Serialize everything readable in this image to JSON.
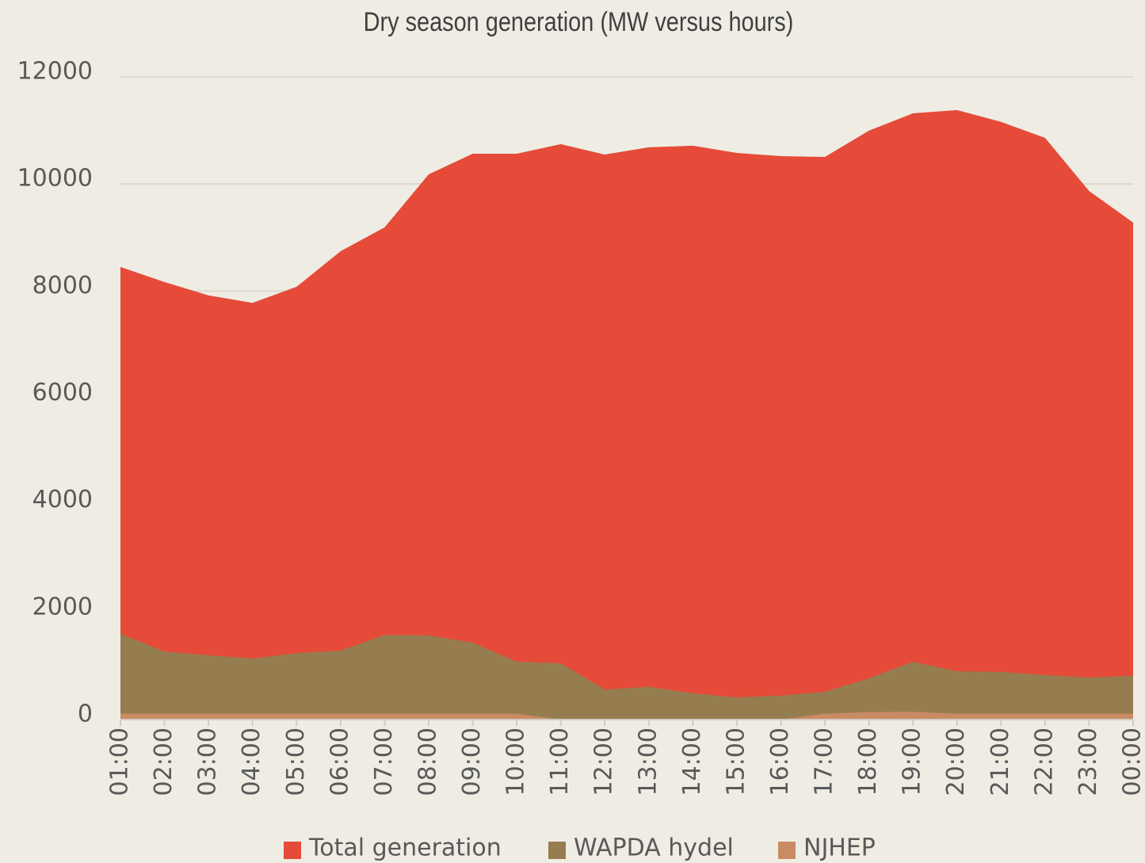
{
  "chart_data": {
    "type": "area",
    "title": "Dry season generation (MW versus hours)",
    "categories": [
      "01:00",
      "02:00",
      "03:00",
      "04:00",
      "05:00",
      "06:00",
      "07:00",
      "08:00",
      "09:00",
      "10:00",
      "11:00",
      "12:00",
      "13:00",
      "14:00",
      "15:00",
      "16:00",
      "17:00",
      "18:00",
      "19:00",
      "20:00",
      "21:00",
      "22:00",
      "23:00",
      "00:00"
    ],
    "series": [
      {
        "name": "Total generation",
        "color": "#e54b38",
        "values": [
          8450,
          8170,
          7920,
          7780,
          8080,
          8745,
          9190,
          10180,
          10565,
          10565,
          10745,
          10550,
          10685,
          10715,
          10580,
          10520,
          10505,
          10995,
          11320,
          11380,
          11160,
          10860,
          9870,
          9280
        ]
      },
      {
        "name": "WAPDA hydel",
        "color": "#967d4f",
        "values": [
          1600,
          1270,
          1200,
          1140,
          1240,
          1290,
          1580,
          1570,
          1435,
          1080,
          1050,
          560,
          610,
          490,
          415,
          445,
          520,
          770,
          1080,
          900,
          890,
          830,
          785,
          815
        ]
      },
      {
        "name": "NJHEP",
        "color": "#c98b64",
        "values": [
          110,
          110,
          110,
          110,
          110,
          110,
          110,
          110,
          110,
          110,
          0,
          0,
          0,
          0,
          0,
          0,
          110,
          140,
          145,
          110,
          110,
          110,
          110,
          110
        ]
      }
    ],
    "ylim": [
      0,
      12000
    ],
    "yticks": [
      0,
      2000,
      4000,
      6000,
      8000,
      10000,
      12000
    ],
    "grid": true,
    "legend": "bottom"
  }
}
